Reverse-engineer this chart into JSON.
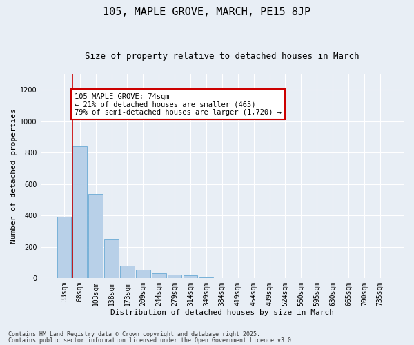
{
  "title": "105, MAPLE GROVE, MARCH, PE15 8JP",
  "subtitle": "Size of property relative to detached houses in March",
  "xlabel": "Distribution of detached houses by size in March",
  "ylabel": "Number of detached properties",
  "categories": [
    "33sqm",
    "68sqm",
    "103sqm",
    "138sqm",
    "173sqm",
    "209sqm",
    "244sqm",
    "279sqm",
    "314sqm",
    "349sqm",
    "384sqm",
    "419sqm",
    "454sqm",
    "489sqm",
    "524sqm",
    "560sqm",
    "595sqm",
    "630sqm",
    "665sqm",
    "700sqm",
    "735sqm"
  ],
  "values": [
    390,
    840,
    535,
    245,
    80,
    55,
    30,
    25,
    20,
    5,
    0,
    0,
    0,
    0,
    0,
    0,
    0,
    0,
    0,
    0,
    0
  ],
  "bar_color": "#b8d0e8",
  "bar_edge_color": "#6aaad4",
  "annotation_title": "105 MAPLE GROVE: 74sqm",
  "annotation_line1": "← 21% of detached houses are smaller (465)",
  "annotation_line2": "79% of semi-detached houses are larger (1,720) →",
  "annotation_box_color": "#ffffff",
  "annotation_box_edge": "#cc0000",
  "vline_color": "#cc0000",
  "ylim": [
    0,
    1300
  ],
  "yticks": [
    0,
    200,
    400,
    600,
    800,
    1000,
    1200
  ],
  "footnote1": "Contains HM Land Registry data © Crown copyright and database right 2025.",
  "footnote2": "Contains public sector information licensed under the Open Government Licence v3.0.",
  "bg_color": "#e8eef5",
  "title_fontsize": 11,
  "subtitle_fontsize": 9,
  "axis_label_fontsize": 8,
  "tick_fontsize": 7,
  "annotation_fontsize": 7.5,
  "footnote_fontsize": 6
}
